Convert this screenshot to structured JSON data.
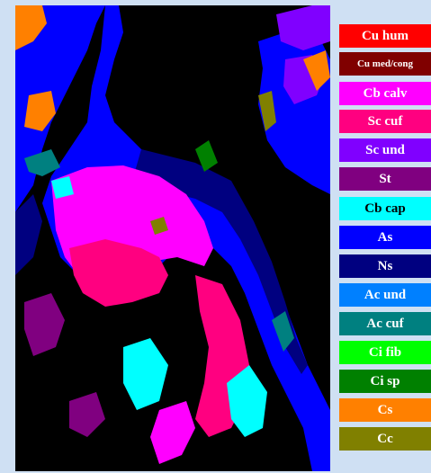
{
  "legend": {
    "items": [
      {
        "label": "Cu hum",
        "color": "#ff0000",
        "text_color": "#ffffff"
      },
      {
        "label": "Cu med/cong",
        "color": "#800000",
        "text_color": "#ffffff"
      },
      {
        "label": "Cb calv",
        "color": "#ff00ff",
        "text_color": "#ffffff"
      },
      {
        "label": "Sc cuf",
        "color": "#ff0080",
        "text_color": "#ffffff"
      },
      {
        "label": "Sc und",
        "color": "#8000ff",
        "text_color": "#ffffff"
      },
      {
        "label": "St",
        "color": "#800080",
        "text_color": "#ffffff"
      },
      {
        "label": "Cb cap",
        "color": "#00ffff",
        "text_color": "#000000"
      },
      {
        "label": "As",
        "color": "#0000ff",
        "text_color": "#ffffff"
      },
      {
        "label": "Ns",
        "color": "#000080",
        "text_color": "#ffffff"
      },
      {
        "label": "Ac und",
        "color": "#0080ff",
        "text_color": "#ffffff"
      },
      {
        "label": "Ac cuf",
        "color": "#008080",
        "text_color": "#ffffff"
      },
      {
        "label": "Ci fib",
        "color": "#00ff00",
        "text_color": "#ffffff"
      },
      {
        "label": "Ci sp",
        "color": "#008000",
        "text_color": "#ffffff"
      },
      {
        "label": "Cs",
        "color": "#ff8000",
        "text_color": "#ffffff"
      },
      {
        "label": "Cc",
        "color": "#808000",
        "text_color": "#ffffff"
      }
    ]
  },
  "colors": {
    "background": "#cfe0f3",
    "clear_sky": "#000000"
  }
}
